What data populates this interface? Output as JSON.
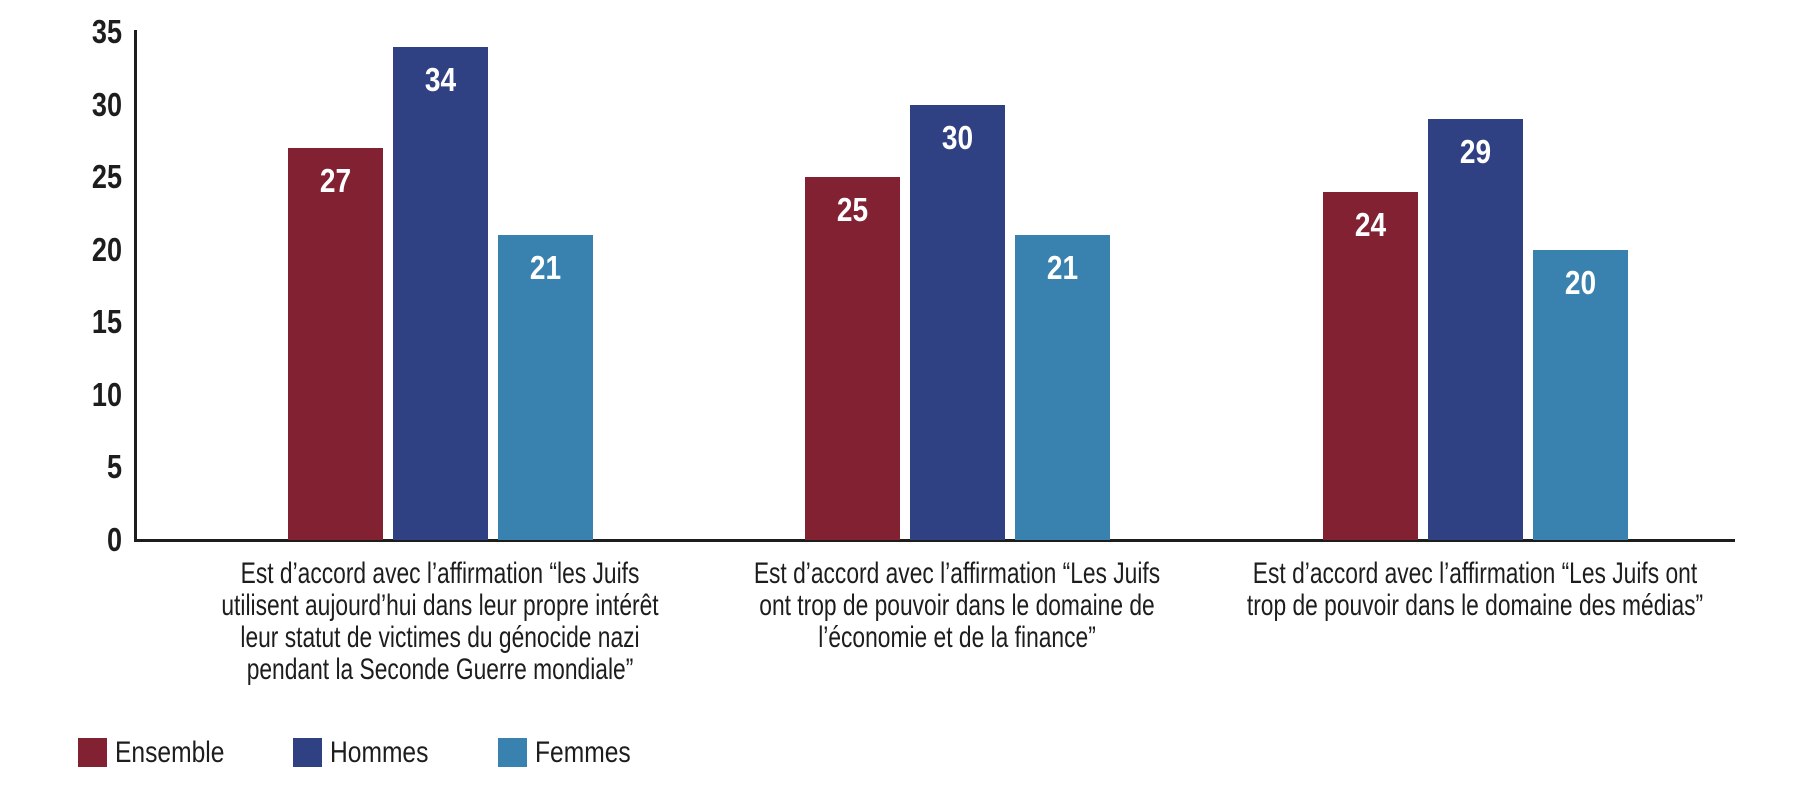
{
  "chart_data": {
    "type": "bar",
    "title": "",
    "xlabel": "",
    "ylabel": "",
    "ylim": [
      0,
      35
    ],
    "yticks": [
      0,
      5,
      10,
      15,
      20,
      25,
      30,
      35
    ],
    "grid": false,
    "legend_position": "bottom-left",
    "value_labels": "inside-top-white-bold",
    "axis_color": "#1d1d1b",
    "background_color": "#ffffff",
    "categories": [
      "Est d’accord avec l’affirmation “les Juifs utilisent aujourd’hui dans leur propre intérêt leur statut de victimes du génocide nazi pendant la Seconde Guerre mondiale”",
      "Est d’accord avec l’affirmation “Les Juifs ont trop de pouvoir dans le domaine de l’économie et de la finance”",
      "Est d’accord avec l’affirmation “Les Juifs ont trop de pouvoir dans le domaine des médias”"
    ],
    "categories_lines": [
      [
        "Est d’accord avec l’affirmation “les Juifs",
        "utilisent aujourd’hui dans leur propre intérêt",
        "leur statut de victimes du génocide nazi",
        "pendant la Seconde Guerre mondiale”"
      ],
      [
        "Est d’accord avec l’affirmation “Les Juifs",
        "ont trop de pouvoir dans le domaine de",
        "l’économie et de la finance”"
      ],
      [
        "Est d’accord avec l’affirmation “Les Juifs ont",
        "trop de pouvoir dans le domaine des médias”"
      ]
    ],
    "series": [
      {
        "name": "Ensemble",
        "color": "#822132",
        "values": [
          27,
          25,
          24
        ]
      },
      {
        "name": "Hommes",
        "color": "#2F4183",
        "values": [
          34,
          30,
          29
        ]
      },
      {
        "name": "Femmes",
        "color": "#3981AF",
        "values": [
          21,
          21,
          20
        ]
      }
    ]
  }
}
